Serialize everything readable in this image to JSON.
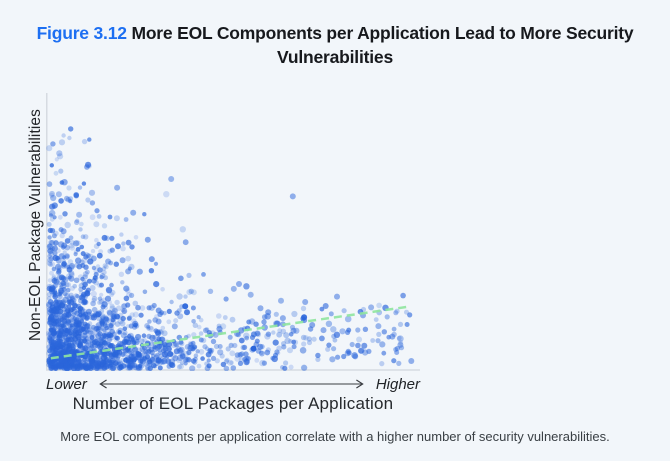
{
  "page": {
    "background": "#F2F6FA"
  },
  "figure": {
    "label": "Figure 3.12",
    "title": "More EOL Components per Application Lead to More Security Vulnerabilities",
    "label_color": "#1D6FF2"
  },
  "caption": "More EOL components per application correlate with a higher number of security vulnerabilities.",
  "chart_data": {
    "type": "scatter",
    "title": "",
    "xlabel": "Number of EOL Packages per Application",
    "ylabel": "Non-EOL Package Vulnerabilities",
    "x_axis_qualitative": {
      "low": "Lower",
      "high": "Higher"
    },
    "axes_numeric": false,
    "grid": false,
    "legend": "none",
    "point_color": "#2B66DB",
    "axis_line_color": "#D6DBE1",
    "description": "Dense cloud of applications with few EOL packages and few non-EOL vulnerabilities hugging the origin; spread thins toward higher EOL counts; dashed trend line rises from lower-left to upper-right indicating positive correlation.",
    "trend_line": {
      "style": "dashed",
      "color": "#8FE59F",
      "dash": "8 5",
      "width": 2.5,
      "start": [
        0.005,
        0.04
      ],
      "end": [
        0.985,
        0.233
      ],
      "slope": "positive"
    },
    "point_cloud": {
      "seed": 42,
      "main_count": 1600,
      "x_scale": 0.13,
      "y_base": 0.055,
      "y_boost": 0.17,
      "y_decay": 3.6,
      "band_count": 260,
      "sparse_count": 34
    },
    "outliers": [
      [
        0.334,
        0.709,
        0.45
      ],
      [
        0.666,
        0.644,
        0.5
      ],
      [
        0.23,
        0.583,
        0.5
      ],
      [
        0.04,
        0.514,
        0.5
      ],
      [
        0.152,
        0.489,
        0.75
      ],
      [
        0.27,
        0.482,
        0.55
      ],
      [
        0.016,
        0.45,
        0.6
      ],
      [
        0.201,
        0.406,
        0.5
      ],
      [
        0.281,
        0.41,
        0.6
      ],
      [
        0.519,
        0.317,
        0.5
      ],
      [
        0.505,
        0.299,
        0.45
      ],
      [
        0.559,
        0.076,
        1.0
      ],
      [
        0.816,
        0.059,
        0.45
      ],
      [
        0.938,
        0.121,
        0.5
      ],
      [
        0.697,
        0.193,
        0.9
      ],
      [
        0.639,
        0.19,
        0.5
      ],
      [
        0.668,
        0.143,
        0.5
      ],
      [
        0.719,
        0.164,
        0.55
      ],
      [
        0.75,
        0.145,
        0.5
      ],
      [
        0.514,
        0.131,
        0.5
      ],
      [
        0.372,
        0.234,
        0.95
      ],
      [
        0.377,
        0.212,
        0.8
      ],
      [
        0.99,
        0.03,
        0.5
      ],
      [
        0.88,
        0.23,
        0.45
      ],
      [
        0.858,
        0.2,
        0.5
      ],
      [
        0.9,
        0.16,
        0.45
      ],
      [
        0.787,
        0.27,
        0.5
      ],
      [
        0.756,
        0.235,
        0.6
      ],
      [
        0.7,
        0.25,
        0.5
      ],
      [
        0.96,
        0.09,
        0.45
      ],
      [
        0.551,
        0.277,
        0.45
      ],
      [
        0.578,
        0.227,
        0.5
      ],
      [
        0.599,
        0.212,
        0.55
      ],
      [
        0.634,
        0.255,
        0.45
      ]
    ]
  }
}
